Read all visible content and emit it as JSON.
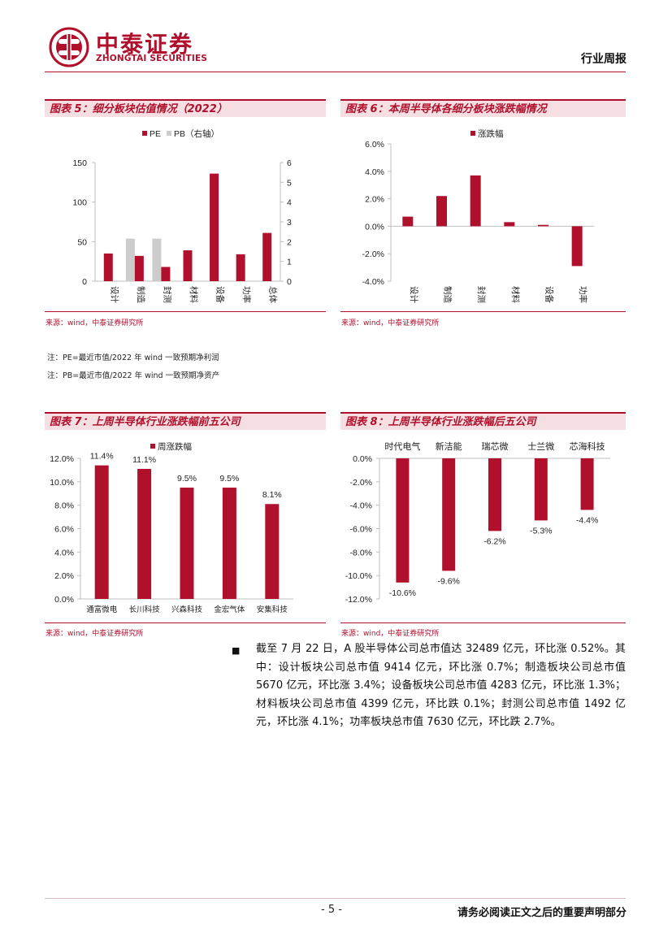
{
  "header": {
    "logo_cn": "中泰证券",
    "logo_en": "ZHONGTAI SECURITIES",
    "report_type": "行业周报"
  },
  "colors": {
    "brand": "#b0102c",
    "pb_gray": "#cccccc"
  },
  "fig5": {
    "title": "图表 5：细分板块估值情况（2022）",
    "source": "来源：wind，中泰证券研究所",
    "notes": [
      "注：PE=最近市值/2022 年 wind 一致预期净利润",
      "注：PB=最近市值/2022 年 wind 一致预期净资产"
    ]
  },
  "fig6": {
    "title": "图表 6：本周半导体各细分板块涨跌幅情况",
    "source": "来源：wind，中泰证券研究所"
  },
  "fig7": {
    "title": "图表 7：上周半导体行业涨跌幅前五公司",
    "source": "来源：wind，中泰证券研究所"
  },
  "fig8": {
    "title": "图表 8：上周半导体行业涨跌幅后五公司",
    "source": "来源：wind，中泰证券研究所"
  },
  "chart_data": [
    {
      "id": "fig5",
      "type": "bar",
      "categories": [
        "设计",
        "制造",
        "封测",
        "材料",
        "设备",
        "功率",
        "总体"
      ],
      "series": [
        {
          "name": "PE",
          "axis": "left",
          "color": "#b0102c",
          "values": [
            35,
            32,
            18,
            39,
            136,
            34,
            61
          ]
        },
        {
          "name": "PB（右轴）",
          "axis": "right",
          "color": "#cccccc",
          "values": [
            null,
            2.15,
            2.15,
            null,
            null,
            null,
            null
          ]
        }
      ],
      "ylim": [
        0,
        150
      ],
      "yticks": [
        "0",
        "50",
        "100",
        "150"
      ],
      "y2lim": [
        0,
        6
      ],
      "y2ticks": [
        "0",
        "1",
        "2",
        "3",
        "4",
        "5",
        "6"
      ],
      "legend": "top"
    },
    {
      "id": "fig6",
      "type": "bar",
      "categories": [
        "设计",
        "制造",
        "封测",
        "材料",
        "设备",
        "功率"
      ],
      "series": [
        {
          "name": "涨跌幅",
          "color": "#b0102c",
          "values": [
            0.7,
            2.2,
            3.7,
            0.3,
            0.1,
            -2.9
          ]
        }
      ],
      "ylim": [
        -4,
        6
      ],
      "yticks": [
        "-4.0%",
        "-2.0%",
        "0.0%",
        "2.0%",
        "4.0%",
        "6.0%"
      ],
      "legend": "top"
    },
    {
      "id": "fig7",
      "type": "bar",
      "categories": [
        "通富微电",
        "长川科技",
        "兴森科技",
        "金宏气体",
        "安集科技"
      ],
      "series": [
        {
          "name": "周涨跌幅",
          "color": "#b0102c",
          "values": [
            11.4,
            11.1,
            9.5,
            9.5,
            8.1
          ]
        }
      ],
      "data_labels": [
        "11.4%",
        "11.1%",
        "9.5%",
        "9.5%",
        "8.1%"
      ],
      "ylim": [
        0,
        12
      ],
      "yticks": [
        "0.0%",
        "2.0%",
        "4.0%",
        "6.0%",
        "8.0%",
        "10.0%",
        "12.0%"
      ],
      "legend": "top"
    },
    {
      "id": "fig8",
      "type": "bar",
      "categories": [
        "时代电气",
        "新洁能",
        "瑞芯微",
        "士兰微",
        "芯海科技"
      ],
      "series": [
        {
          "name": "",
          "color": "#b0102c",
          "values": [
            -10.6,
            -9.6,
            -6.2,
            -5.3,
            -4.4
          ]
        }
      ],
      "data_labels": [
        "-10.6%",
        "-9.6%",
        "-6.2%",
        "-5.3%",
        "-4.4%"
      ],
      "ylim": [
        -12,
        0
      ],
      "yticks": [
        "-12.0%",
        "-10.0%",
        "-8.0%",
        "-6.0%",
        "-4.0%",
        "-2.0%",
        "0.0%"
      ]
    }
  ],
  "body": {
    "bullet": "■",
    "paragraph": "截至 7 月 22 日，A 股半导体公司总市值达 32489 亿元，环比涨 0.52%。其中：设计板块公司总市值 9414 亿元，环比涨 0.7%；制造板块公司总市值 5670 亿元，环比涨 3.4%；设备板块公司总市值 4283 亿元，环比涨 1.3%；材料板块公司总市值 4399 亿元，环比跌 0.1%；封测公司总市值 1492 亿元，环比涨 4.1%；功率板块总市值 7630 亿元，环比跌 2.7%。"
  },
  "footer": {
    "page": "- 5 -",
    "disclaimer": "请务必阅读正文之后的重要声明部分"
  }
}
